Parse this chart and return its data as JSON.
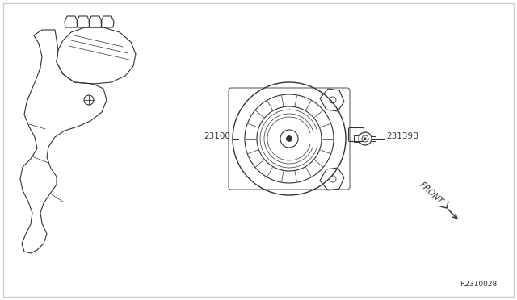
{
  "background_color": "#ffffff",
  "border_color": "#cccccc",
  "line_color": "#333333",
  "label_23100": "23100",
  "label_23139B": "23139B",
  "label_front": "FRONT",
  "label_ref": "R2310028",
  "fig_width": 6.4,
  "fig_height": 3.72,
  "dpi": 100
}
